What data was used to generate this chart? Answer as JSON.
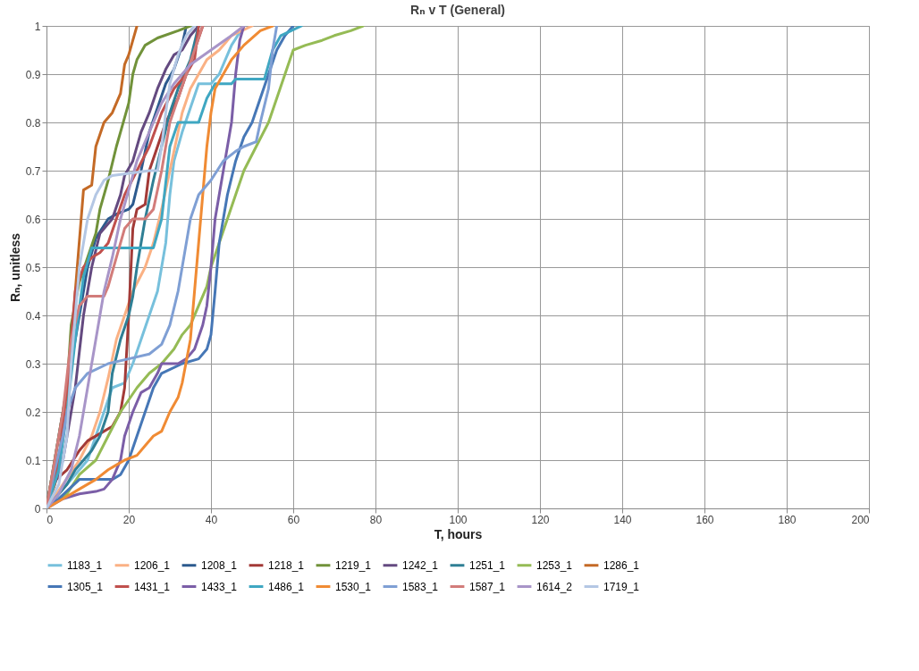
{
  "chart_data": {
    "type": "line",
    "title": "Rₙ v T (General)",
    "xlabel": "T, hours",
    "ylabel": "Rₙ, unitless",
    "xlim": [
      0,
      200
    ],
    "xticks": [
      0,
      20,
      40,
      60,
      80,
      100,
      120,
      140,
      160,
      180,
      200
    ],
    "ylim": [
      0,
      1
    ],
    "yticks": [
      0,
      0.1,
      0.2,
      0.3,
      0.4,
      0.5,
      0.6,
      0.7,
      0.8,
      0.9,
      1
    ],
    "grid": true,
    "legend": "bottom",
    "marker": "none",
    "line_style": "solid",
    "series": [
      {
        "name": "1183_1",
        "color": "#77c0dc",
        "x": [
          0,
          5,
          10,
          12,
          14,
          16,
          19,
          21,
          23,
          25,
          27,
          28,
          29,
          30,
          31,
          33,
          35,
          37,
          40,
          42,
          45,
          48
        ],
        "values": [
          0,
          0.05,
          0.1,
          0.15,
          0.2,
          0.25,
          0.26,
          0.3,
          0.35,
          0.4,
          0.45,
          0.5,
          0.55,
          0.65,
          0.72,
          0.78,
          0.83,
          0.88,
          0.88,
          0.9,
          0.96,
          1
        ]
      },
      {
        "name": "1206_1",
        "color": "#fab184",
        "x": [
          0,
          4,
          8,
          11,
          13,
          15,
          17,
          19,
          21,
          24,
          26,
          28,
          30,
          32,
          33,
          35,
          37,
          39,
          42,
          45,
          50
        ],
        "values": [
          0,
          0.05,
          0.1,
          0.15,
          0.2,
          0.27,
          0.35,
          0.4,
          0.45,
          0.5,
          0.55,
          0.62,
          0.7,
          0.78,
          0.82,
          0.87,
          0.9,
          0.93,
          0.95,
          0.98,
          1
        ]
      },
      {
        "name": "1208_1",
        "color": "#2c5a8e",
        "x": [
          0,
          2,
          4,
          6,
          8,
          10,
          12,
          15,
          17,
          20,
          21,
          23,
          25,
          27,
          29,
          31,
          33,
          34
        ],
        "values": [
          0,
          0.1,
          0.2,
          0.3,
          0.4,
          0.5,
          0.56,
          0.6,
          0.61,
          0.62,
          0.63,
          0.7,
          0.78,
          0.83,
          0.88,
          0.91,
          0.96,
          1
        ]
      },
      {
        "name": "1218_1",
        "color": "#a33a37",
        "x": [
          0,
          1,
          5,
          8,
          10,
          14,
          16,
          18,
          19,
          20,
          21,
          22,
          24,
          25,
          27,
          29,
          32,
          34,
          36,
          38
        ],
        "values": [
          0,
          0.05,
          0.08,
          0.12,
          0.14,
          0.16,
          0.17,
          0.2,
          0.25,
          0.4,
          0.58,
          0.62,
          0.63,
          0.7,
          0.75,
          0.8,
          0.85,
          0.9,
          0.95,
          1
        ]
      },
      {
        "name": "1219_1",
        "color": "#71923a",
        "x": [
          0,
          3,
          5,
          6,
          8,
          10,
          12,
          13,
          15,
          17,
          18,
          20,
          21,
          22,
          24,
          27,
          32,
          35
        ],
        "values": [
          0,
          0.15,
          0.25,
          0.38,
          0.47,
          0.52,
          0.57,
          0.62,
          0.68,
          0.75,
          0.78,
          0.84,
          0.9,
          0.93,
          0.96,
          0.975,
          0.99,
          1
        ]
      },
      {
        "name": "1242_1",
        "color": "#644a80",
        "x": [
          0,
          4,
          7,
          9,
          11,
          13,
          16,
          18,
          19,
          21,
          23,
          25,
          27,
          29,
          31,
          33,
          35,
          37
        ],
        "values": [
          0,
          0.1,
          0.25,
          0.4,
          0.5,
          0.57,
          0.6,
          0.65,
          0.69,
          0.72,
          0.78,
          0.82,
          0.87,
          0.91,
          0.94,
          0.95,
          0.98,
          1
        ]
      },
      {
        "name": "1251_1",
        "color": "#2f7f95",
        "x": [
          0,
          3,
          5,
          7,
          9,
          11,
          13,
          15,
          16,
          18,
          20,
          21,
          22,
          24,
          26,
          28,
          30,
          32,
          35,
          37
        ],
        "values": [
          0,
          0.03,
          0.05,
          0.08,
          0.1,
          0.12,
          0.15,
          0.2,
          0.28,
          0.35,
          0.4,
          0.44,
          0.5,
          0.6,
          0.68,
          0.75,
          0.82,
          0.87,
          0.93,
          1
        ]
      },
      {
        "name": "1253_1",
        "color": "#95bb55",
        "x": [
          0,
          5,
          8,
          12,
          15,
          18,
          22,
          25,
          28,
          31,
          33,
          35,
          37,
          39,
          40,
          42,
          44,
          46,
          48,
          51,
          54,
          56,
          58,
          60,
          63,
          67,
          70,
          74,
          77
        ],
        "values": [
          0,
          0.03,
          0.07,
          0.1,
          0.15,
          0.2,
          0.25,
          0.28,
          0.3,
          0.33,
          0.36,
          0.38,
          0.42,
          0.46,
          0.5,
          0.55,
          0.6,
          0.65,
          0.7,
          0.75,
          0.8,
          0.85,
          0.9,
          0.95,
          0.96,
          0.97,
          0.98,
          0.99,
          1
        ]
      },
      {
        "name": "1286_1",
        "color": "#c46a26",
        "x": [
          0,
          2,
          5,
          7,
          9,
          11,
          12,
          14,
          16,
          18,
          19,
          20,
          21,
          22
        ],
        "values": [
          0,
          0.05,
          0.2,
          0.45,
          0.66,
          0.67,
          0.75,
          0.8,
          0.82,
          0.86,
          0.92,
          0.94,
          0.97,
          1
        ]
      },
      {
        "name": "1305_1",
        "color": "#4677b6",
        "x": [
          0,
          3,
          8,
          16,
          18,
          20,
          22,
          24,
          26,
          28,
          33,
          37,
          39,
          40,
          41,
          42,
          44,
          46,
          48,
          50,
          52,
          54,
          56,
          58,
          60
        ],
        "values": [
          0,
          0.02,
          0.06,
          0.06,
          0.07,
          0.1,
          0.15,
          0.2,
          0.25,
          0.28,
          0.3,
          0.31,
          0.33,
          0.36,
          0.45,
          0.55,
          0.65,
          0.72,
          0.77,
          0.8,
          0.85,
          0.9,
          0.95,
          0.98,
          1
        ]
      },
      {
        "name": "1431_1",
        "color": "#c0504d",
        "x": [
          0,
          3,
          5,
          6,
          7,
          9,
          11,
          13,
          15,
          17,
          19,
          22,
          25,
          28,
          31,
          34,
          36,
          37
        ],
        "values": [
          0,
          0.1,
          0.25,
          0.35,
          0.45,
          0.5,
          0.52,
          0.53,
          0.55,
          0.6,
          0.65,
          0.7,
          0.75,
          0.82,
          0.87,
          0.9,
          0.93,
          1
        ]
      },
      {
        "name": "1433_1",
        "color": "#7b5ea7",
        "x": [
          0,
          4,
          8,
          12,
          14,
          16,
          18,
          19,
          21,
          23,
          25,
          27,
          28,
          32,
          34,
          36,
          38,
          39,
          40,
          41,
          43,
          45,
          46,
          47,
          48
        ],
        "values": [
          0,
          0.02,
          0.03,
          0.035,
          0.04,
          0.06,
          0.1,
          0.15,
          0.2,
          0.24,
          0.25,
          0.28,
          0.3,
          0.3,
          0.31,
          0.33,
          0.38,
          0.42,
          0.5,
          0.6,
          0.7,
          0.8,
          0.9,
          0.97,
          1
        ]
      },
      {
        "name": "1486_1",
        "color": "#3fa7c2",
        "x": [
          0,
          3,
          5,
          7,
          9,
          11,
          26,
          28,
          30,
          32,
          37,
          39,
          41,
          45,
          46,
          53,
          55,
          57,
          62
        ],
        "values": [
          0,
          0.08,
          0.2,
          0.35,
          0.48,
          0.54,
          0.54,
          0.6,
          0.75,
          0.8,
          0.8,
          0.85,
          0.88,
          0.88,
          0.89,
          0.89,
          0.95,
          0.98,
          1
        ]
      },
      {
        "name": "1530_1",
        "color": "#f08b34",
        "x": [
          0,
          4,
          8,
          12,
          15,
          17,
          19,
          22,
          24,
          26,
          28,
          30,
          32,
          33,
          35,
          36,
          37,
          38,
          39,
          40,
          41,
          43,
          45,
          48,
          52,
          55
        ],
        "values": [
          0,
          0.02,
          0.04,
          0.06,
          0.08,
          0.09,
          0.1,
          0.11,
          0.13,
          0.15,
          0.16,
          0.2,
          0.23,
          0.26,
          0.35,
          0.45,
          0.55,
          0.65,
          0.75,
          0.82,
          0.87,
          0.9,
          0.93,
          0.96,
          0.99,
          1
        ]
      },
      {
        "name": "1583_1",
        "color": "#7f9fd4",
        "x": [
          0,
          2,
          4,
          5,
          7,
          10,
          15,
          20,
          25,
          28,
          30,
          32,
          33,
          35,
          37,
          40,
          43,
          46,
          48,
          51,
          52,
          54,
          55,
          56
        ],
        "values": [
          0,
          0.08,
          0.15,
          0.2,
          0.25,
          0.28,
          0.3,
          0.31,
          0.32,
          0.34,
          0.38,
          0.45,
          0.5,
          0.6,
          0.65,
          0.68,
          0.72,
          0.74,
          0.75,
          0.76,
          0.8,
          0.87,
          0.95,
          1
        ]
      },
      {
        "name": "1587_1",
        "color": "#d27c7a",
        "x": [
          0,
          2,
          4,
          6,
          8,
          10,
          14,
          15,
          17,
          19,
          21,
          24,
          26,
          28,
          30,
          32,
          34,
          36,
          38
        ],
        "values": [
          0,
          0.1,
          0.2,
          0.35,
          0.42,
          0.44,
          0.44,
          0.46,
          0.52,
          0.58,
          0.6,
          0.6,
          0.62,
          0.7,
          0.8,
          0.85,
          0.9,
          0.95,
          1
        ]
      },
      {
        "name": "1614_2",
        "color": "#a895c8",
        "x": [
          0,
          3,
          6,
          8,
          10,
          12,
          14,
          16,
          18,
          20,
          22,
          25,
          28,
          31,
          35,
          40,
          45,
          48
        ],
        "values": [
          0,
          0.03,
          0.08,
          0.15,
          0.25,
          0.35,
          0.45,
          0.52,
          0.6,
          0.66,
          0.72,
          0.78,
          0.84,
          0.88,
          0.92,
          0.95,
          0.98,
          1
        ]
      },
      {
        "name": "1719_1",
        "color": "#b4c7e4",
        "x": [
          0,
          3,
          5,
          6,
          7,
          8,
          10,
          12,
          14,
          16,
          25,
          27,
          28,
          29,
          30,
          32,
          34,
          36
        ],
        "values": [
          0,
          0.05,
          0.15,
          0.3,
          0.4,
          0.5,
          0.6,
          0.65,
          0.68,
          0.69,
          0.7,
          0.7,
          0.75,
          0.82,
          0.88,
          0.94,
          0.98,
          1
        ]
      }
    ]
  }
}
